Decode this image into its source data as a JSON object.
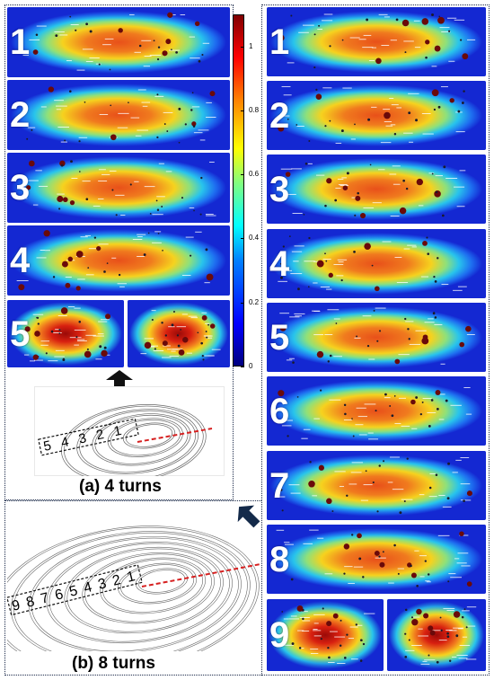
{
  "captions": {
    "a": "(a) 4 turns",
    "b": "(b) 8 turns"
  },
  "left_panels": [
    "1",
    "2",
    "3",
    "4",
    "5"
  ],
  "right_panels": [
    "1",
    "2",
    "3",
    "4",
    "5",
    "6",
    "7",
    "8",
    "9"
  ],
  "colorbar": {
    "ticks": [
      "1",
      "0.8",
      "0.6",
      "0.4",
      "0.2",
      "0"
    ],
    "min": 0,
    "max": 1.1,
    "colormap": "jet"
  },
  "spiral_a_labels": [
    "5",
    "4",
    "3",
    "2",
    "1"
  ],
  "spiral_b_labels": [
    "9",
    "8",
    "7",
    "6",
    "5",
    "4",
    "3",
    "2",
    "1"
  ],
  "colors": {
    "frame": "#1c2a4a",
    "hot": "#c81e0f",
    "cold": "#1428d2",
    "cut_line": "#d62020",
    "particle": "#5a0a0a"
  }
}
